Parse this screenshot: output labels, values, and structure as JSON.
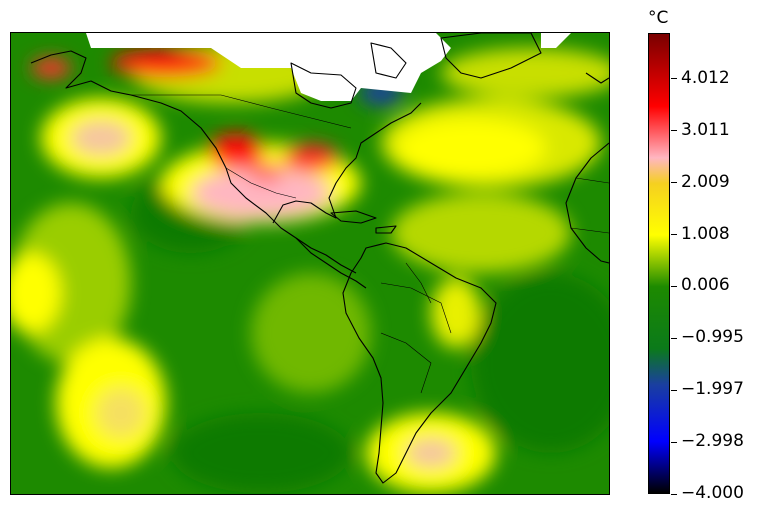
{
  "colorbar": {
    "unit": "°C",
    "ticks": [
      "4.012",
      "3.011",
      "2.009",
      "1.008",
      "0.006",
      "−0.995",
      "−1.997",
      "−2.998",
      "−4.000"
    ],
    "tick_values": [
      4.012,
      3.011,
      2.009,
      1.008,
      0.006,
      -0.995,
      -1.997,
      -2.998,
      -4.0
    ],
    "min": -4.0,
    "max": 4.9,
    "stops": [
      {
        "value": -4.0,
        "color": "#000000"
      },
      {
        "value": -3.0,
        "color": "#0000ff"
      },
      {
        "value": -1.9,
        "color": "#1a3fa0"
      },
      {
        "value": -1.2,
        "color": "#0b7a1a"
      },
      {
        "value": 0.0,
        "color": "#1d8a00"
      },
      {
        "value": 1.0,
        "color": "#ffff00"
      },
      {
        "value": 2.0,
        "color": "#f5d020"
      },
      {
        "value": 2.5,
        "color": "#ffb6c1"
      },
      {
        "value": 3.5,
        "color": "#ff0000"
      },
      {
        "value": 4.9,
        "color": "#7a0000"
      }
    ]
  },
  "map": {
    "region": "Americas",
    "colors": {
      "land_outline": "#000000",
      "missing_data": "#ffffff"
    }
  }
}
